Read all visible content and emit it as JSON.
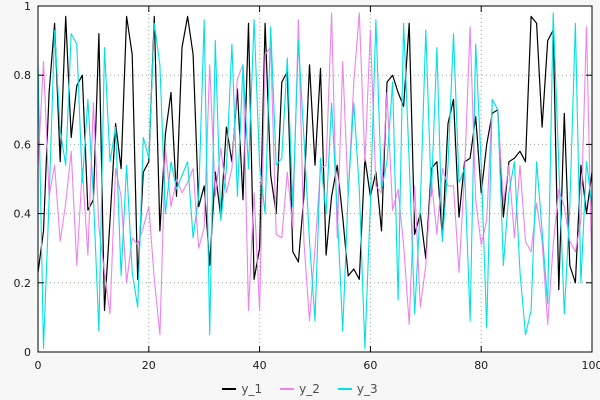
{
  "colors": {
    "background": "#f7f7f7",
    "plot_background": "#ffffff",
    "frame": "#000000",
    "grid": "#9aa89a",
    "tick_label": "#1a1a1a",
    "legend_text": "#4d4d4d"
  },
  "chart_data": {
    "type": "line",
    "title": "",
    "xlabel": "",
    "ylabel": "",
    "xlim": [
      0,
      100
    ],
    "ylim": [
      0,
      1
    ],
    "grid": "dotted",
    "legend_position": "bottom-center",
    "xticks": {
      "values": [
        0,
        20,
        40,
        60,
        80,
        100
      ],
      "labels": [
        "0",
        "20",
        "40",
        "60",
        "80",
        "100"
      ]
    },
    "yticks": {
      "values": [
        0,
        0.2,
        0.4,
        0.6,
        0.8,
        1
      ],
      "labels": [
        "0",
        "0.2",
        "0.4",
        "0.6",
        "0.8",
        "1"
      ]
    },
    "x": [
      0,
      1,
      2,
      3,
      4,
      5,
      6,
      7,
      8,
      9,
      10,
      11,
      12,
      13,
      14,
      15,
      16,
      17,
      18,
      19,
      20,
      21,
      22,
      23,
      24,
      25,
      26,
      27,
      28,
      29,
      30,
      31,
      32,
      33,
      34,
      35,
      36,
      37,
      38,
      39,
      40,
      41,
      42,
      43,
      44,
      45,
      46,
      47,
      48,
      49,
      50,
      51,
      52,
      53,
      54,
      55,
      56,
      57,
      58,
      59,
      60,
      61,
      62,
      63,
      64,
      65,
      66,
      67,
      68,
      69,
      70,
      71,
      72,
      73,
      74,
      75,
      76,
      77,
      78,
      79,
      80,
      81,
      82,
      83,
      84,
      85,
      86,
      87,
      88,
      89,
      90,
      91,
      92,
      93,
      94,
      95,
      96,
      97,
      98,
      99,
      100
    ],
    "series": [
      {
        "name": "y_1",
        "color": "#000000",
        "values": [
          0.23,
          0.35,
          0.75,
          0.95,
          0.55,
          0.97,
          0.62,
          0.77,
          0.8,
          0.41,
          0.44,
          0.92,
          0.12,
          0.38,
          0.66,
          0.53,
          0.97,
          0.86,
          0.21,
          0.52,
          0.55,
          0.97,
          0.35,
          0.63,
          0.75,
          0.45,
          0.88,
          0.97,
          0.86,
          0.42,
          0.48,
          0.25,
          0.52,
          0.39,
          0.65,
          0.55,
          0.76,
          0.44,
          0.95,
          0.21,
          0.3,
          0.95,
          0.51,
          0.4,
          0.78,
          0.81,
          0.29,
          0.26,
          0.45,
          0.83,
          0.54,
          0.82,
          0.28,
          0.45,
          0.54,
          0.39,
          0.22,
          0.24,
          0.21,
          0.56,
          0.45,
          0.52,
          0.35,
          0.78,
          0.8,
          0.75,
          0.71,
          0.95,
          0.34,
          0.4,
          0.27,
          0.53,
          0.55,
          0.33,
          0.66,
          0.73,
          0.39,
          0.55,
          0.56,
          0.68,
          0.46,
          0.6,
          0.69,
          0.7,
          0.39,
          0.55,
          0.56,
          0.58,
          0.55,
          0.97,
          0.95,
          0.65,
          0.9,
          0.93,
          0.18,
          0.69,
          0.25,
          0.2,
          0.54,
          0.4,
          0.52
        ]
      },
      {
        "name": "y_2",
        "color": "#ee82ee",
        "values": [
          0.54,
          0.84,
          0.45,
          0.54,
          0.32,
          0.43,
          0.58,
          0.25,
          0.53,
          0.28,
          0.72,
          0.36,
          0.23,
          0.11,
          0.53,
          0.45,
          0.2,
          0.33,
          0.31,
          0.36,
          0.42,
          0.21,
          0.05,
          0.59,
          0.42,
          0.5,
          0.46,
          0.49,
          0.53,
          0.3,
          0.36,
          0.83,
          0.45,
          0.59,
          0.46,
          0.53,
          0.79,
          0.83,
          0.12,
          0.46,
          0.12,
          0.86,
          0.88,
          0.34,
          0.33,
          0.52,
          0.36,
          0.96,
          0.32,
          0.09,
          0.3,
          0.53,
          0.54,
          0.98,
          0.33,
          0.84,
          0.45,
          0.78,
          0.98,
          0.55,
          0.93,
          0.48,
          0.46,
          0.75,
          0.41,
          0.47,
          0.31,
          0.08,
          0.48,
          0.13,
          0.25,
          0.5,
          0.34,
          0.53,
          0.48,
          0.48,
          0.23,
          0.52,
          0.94,
          0.44,
          0.31,
          0.38,
          0.73,
          0.7,
          0.43,
          0.54,
          0.33,
          0.54,
          0.32,
          0.29,
          0.43,
          0.32,
          0.08,
          0.31,
          0.47,
          0.42,
          0.32,
          0.29,
          0.38,
          0.94,
          0.21
        ]
      },
      {
        "name": "y_3",
        "color": "#00e0e6",
        "values": [
          0.84,
          0.01,
          0.44,
          0.93,
          0.64,
          0.54,
          0.92,
          0.89,
          0.49,
          0.73,
          0.45,
          0.06,
          0.88,
          0.55,
          0.65,
          0.22,
          0.54,
          0.23,
          0.13,
          0.62,
          0.56,
          0.95,
          0.83,
          0.4,
          0.55,
          0.47,
          0.51,
          0.55,
          0.33,
          0.45,
          0.96,
          0.05,
          0.9,
          0.38,
          0.53,
          0.89,
          0.45,
          0.83,
          0.53,
          0.96,
          0.54,
          0.4,
          0.94,
          0.54,
          0.56,
          0.85,
          0.42,
          0.9,
          0.62,
          0.32,
          0.09,
          0.56,
          0.4,
          0.72,
          0.41,
          0.06,
          0.46,
          0.72,
          0.47,
          0.01,
          0.43,
          0.96,
          0.47,
          0.55,
          0.78,
          0.15,
          0.95,
          0.55,
          0.11,
          0.42,
          0.93,
          0.45,
          0.88,
          0.32,
          0.54,
          0.92,
          0.49,
          0.53,
          0.09,
          0.89,
          0.54,
          0.07,
          0.73,
          0.7,
          0.25,
          0.46,
          0.55,
          0.23,
          0.05,
          0.12,
          0.55,
          0.35,
          0.14,
          0.98,
          0.54,
          0.11,
          0.42,
          0.95,
          0.2,
          0.55,
          0.42
        ]
      }
    ]
  }
}
